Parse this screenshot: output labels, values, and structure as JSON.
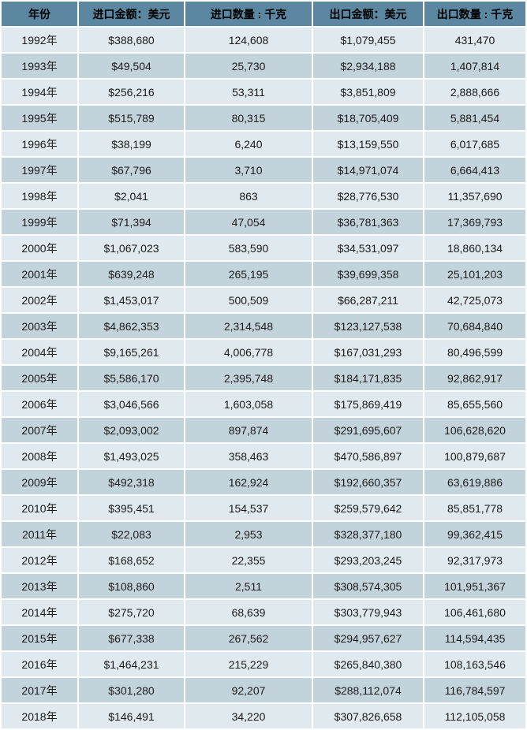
{
  "colors": {
    "header_bg": "#5b87a1",
    "row_light": "#dfe9ee",
    "row_dark": "#c3d3dc",
    "grid": "#ffffff",
    "text": "#1a1a1a"
  },
  "table": {
    "columns": [
      {
        "key": "year",
        "label": "年份"
      },
      {
        "key": "import_amount",
        "label": "进口金额：美元"
      },
      {
        "key": "import_qty",
        "label": "进口数量 : 千克"
      },
      {
        "key": "export_amount",
        "label": "出口金额：美元"
      },
      {
        "key": "export_qty",
        "label": "出口数量 : 千克"
      }
    ],
    "rows": [
      {
        "year": "1992年",
        "import_amount": "$388,680",
        "import_qty": "124,608",
        "export_amount": "$1,079,455",
        "export_qty": "431,470"
      },
      {
        "year": "1993年",
        "import_amount": "$49,504",
        "import_qty": "25,730",
        "export_amount": "$2,934,188",
        "export_qty": "1,407,814"
      },
      {
        "year": "1994年",
        "import_amount": "$256,216",
        "import_qty": "53,311",
        "export_amount": "$3,851,809",
        "export_qty": "2,888,666"
      },
      {
        "year": "1995年",
        "import_amount": "$515,789",
        "import_qty": "80,315",
        "export_amount": "$18,705,409",
        "export_qty": "5,881,454"
      },
      {
        "year": "1996年",
        "import_amount": "$38,199",
        "import_qty": "6,240",
        "export_amount": "$13,159,550",
        "export_qty": "6,017,685"
      },
      {
        "year": "1997年",
        "import_amount": "$67,796",
        "import_qty": "3,710",
        "export_amount": "$14,971,074",
        "export_qty": "6,664,413"
      },
      {
        "year": "1998年",
        "import_amount": "$2,041",
        "import_qty": "863",
        "export_amount": "$28,776,530",
        "export_qty": "11,357,690"
      },
      {
        "year": "1999年",
        "import_amount": "$71,394",
        "import_qty": "47,054",
        "export_amount": "$36,781,363",
        "export_qty": "17,369,793"
      },
      {
        "year": "2000年",
        "import_amount": "$1,067,023",
        "import_qty": "583,590",
        "export_amount": "$34,531,097",
        "export_qty": "18,860,134"
      },
      {
        "year": "2001年",
        "import_amount": "$639,248",
        "import_qty": "265,195",
        "export_amount": "$39,699,358",
        "export_qty": "25,101,203"
      },
      {
        "year": "2002年",
        "import_amount": "$1,453,017",
        "import_qty": "500,509",
        "export_amount": "$66,287,211",
        "export_qty": "42,725,073"
      },
      {
        "year": "2003年",
        "import_amount": "$4,862,353",
        "import_qty": "2,314,548",
        "export_amount": "$123,127,538",
        "export_qty": "70,684,840"
      },
      {
        "year": "2004年",
        "import_amount": "$9,165,261",
        "import_qty": "4,006,778",
        "export_amount": "$167,031,293",
        "export_qty": "80,496,599"
      },
      {
        "year": "2005年",
        "import_amount": "$5,586,170",
        "import_qty": "2,395,748",
        "export_amount": "$184,171,835",
        "export_qty": "92,862,917"
      },
      {
        "year": "2006年",
        "import_amount": "$3,046,566",
        "import_qty": "1,603,058",
        "export_amount": "$175,869,419",
        "export_qty": "85,655,560"
      },
      {
        "year": "2007年",
        "import_amount": "$2,093,002",
        "import_qty": "897,874",
        "export_amount": "$291,695,607",
        "export_qty": "106,628,620"
      },
      {
        "year": "2008年",
        "import_amount": "$1,493,025",
        "import_qty": "358,463",
        "export_amount": "$470,586,897",
        "export_qty": "100,879,687"
      },
      {
        "year": "2009年",
        "import_amount": "$492,318",
        "import_qty": "162,924",
        "export_amount": "$192,660,357",
        "export_qty": "63,619,886"
      },
      {
        "year": "2010年",
        "import_amount": "$395,451",
        "import_qty": "154,537",
        "export_amount": "$259,579,642",
        "export_qty": "85,851,778"
      },
      {
        "year": "2011年",
        "import_amount": "$22,083",
        "import_qty": "2,953",
        "export_amount": "$328,377,180",
        "export_qty": "99,362,415"
      },
      {
        "year": "2012年",
        "import_amount": "$168,652",
        "import_qty": "22,355",
        "export_amount": "$293,203,245",
        "export_qty": "92,317,973"
      },
      {
        "year": "2013年",
        "import_amount": "$108,860",
        "import_qty": "2,511",
        "export_amount": "$308,574,305",
        "export_qty": "101,951,367"
      },
      {
        "year": "2014年",
        "import_amount": "$275,720",
        "import_qty": "68,639",
        "export_amount": "$303,779,943",
        "export_qty": "106,461,680"
      },
      {
        "year": "2015年",
        "import_amount": "$677,338",
        "import_qty": "267,562",
        "export_amount": "$294,957,627",
        "export_qty": "114,594,435"
      },
      {
        "year": "2016年",
        "import_amount": "$1,464,231",
        "import_qty": "215,229",
        "export_amount": "$265,840,380",
        "export_qty": "108,163,546"
      },
      {
        "year": "2017年",
        "import_amount": "$301,280",
        "import_qty": "92,207",
        "export_amount": "$288,112,074",
        "export_qty": "116,784,597"
      },
      {
        "year": "2018年",
        "import_amount": "$146,491",
        "import_qty": "34,220",
        "export_amount": "$307,826,658",
        "export_qty": "112,105,058"
      }
    ]
  }
}
